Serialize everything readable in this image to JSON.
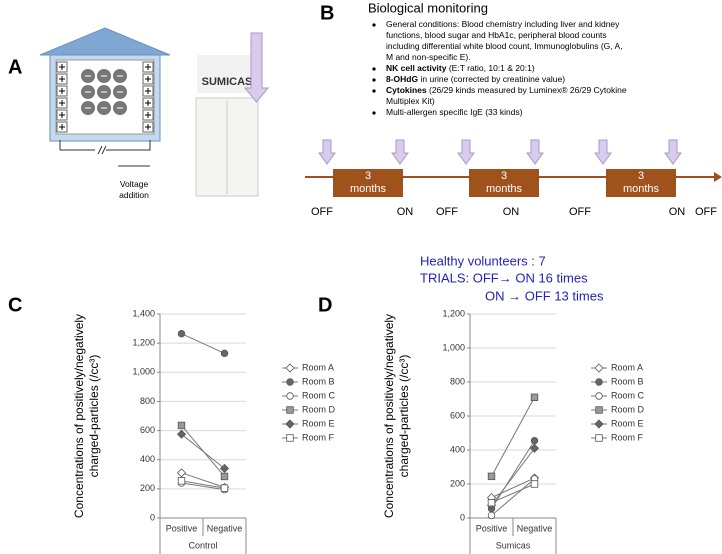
{
  "panel_a": {
    "letter": "A",
    "logo": "SUMICAS",
    "voltage_label": [
      "Voltage",
      "addition"
    ]
  },
  "panel_b": {
    "letter": "B",
    "title": "Biological monitoring",
    "bullets": [
      {
        "lines": [
          "General conditions: Blood chemistry including liver and kidney",
          "functions, blood sugar and HbA1c, peripheral blood counts",
          "including differential white blood count, Immunoglobulins (G, A,",
          "M and non-specific E)."
        ]
      },
      {
        "bold": "NK cell activity",
        "lines": [
          " (E:T ratio, 10:1 & 20:1)"
        ]
      },
      {
        "bold": "8-OHdG",
        "lines": [
          " in urine (corrected by creatinine value)"
        ]
      },
      {
        "bold": "Cytokines",
        "lines": [
          " (26/29 kinds measured by Luminex® 26/29 Cytokine",
          "Multiplex Kit)"
        ]
      },
      {
        "lines": [
          "Multi-allergen specific IgE (33 kinds)"
        ]
      }
    ],
    "period_labels": [
      [
        "3",
        "months"
      ],
      [
        "3",
        "months"
      ],
      [
        "3",
        "months"
      ]
    ],
    "state_labels": [
      "OFF",
      "ON",
      "OFF",
      "ON",
      "OFF",
      "ON",
      "OFF"
    ],
    "summary": [
      "Healthy volunteers : 7",
      "TRIALS:  OFF→ ON    16 times",
      "ON  → OFF  13 times"
    ]
  },
  "chart_data": [
    {
      "type": "line",
      "letter": "C",
      "xlabel": "Control",
      "ylabel": [
        "Concentrations of positively/negatively",
        "charged-particles (/cc³)"
      ],
      "categories": [
        "Positive",
        "Negative"
      ],
      "ylim": [
        0,
        1400
      ],
      "yticks": [
        0,
        200,
        400,
        600,
        800,
        {
          "value": 1000,
          "label": "1,000"
        },
        {
          "value": 1200,
          "label": "1,200"
        },
        {
          "value": 1400,
          "label": "1,400"
        }
      ],
      "grid": true,
      "series": [
        {
          "name": "Room A",
          "color": "#888888",
          "marker": "open-diamond",
          "values": [
            310,
            210
          ]
        },
        {
          "name": "Room B",
          "color": "#666666",
          "marker": "circle",
          "values": [
            1265,
            1130
          ]
        },
        {
          "name": "Room C",
          "color": "#888888",
          "marker": "open-circle",
          "values": [
            240,
            195
          ]
        },
        {
          "name": "Room D",
          "color": "#999999",
          "marker": "square",
          "values": [
            635,
            285
          ]
        },
        {
          "name": "Room E",
          "color": "#666666",
          "marker": "diamond",
          "values": [
            575,
            340
          ]
        },
        {
          "name": "Room F",
          "color": "#888888",
          "marker": "open-square",
          "values": [
            255,
            205
          ]
        }
      ]
    },
    {
      "type": "line",
      "letter": "D",
      "xlabel": "Sumicas",
      "ylabel": [
        "Concentrations of positively/negatively",
        "charged-particles (/cc³)"
      ],
      "categories": [
        "Positive",
        "Negative"
      ],
      "ylim": [
        0,
        1200
      ],
      "yticks": [
        0,
        200,
        400,
        600,
        800,
        {
          "value": 1000,
          "label": "1,000"
        },
        {
          "value": 1200,
          "label": "1,200"
        }
      ],
      "grid": true,
      "series": [
        {
          "name": "Room A",
          "color": "#888888",
          "marker": "open-diamond",
          "values": [
            120,
            235
          ]
        },
        {
          "name": "Room B",
          "color": "#666666",
          "marker": "circle",
          "values": [
            55,
            455
          ]
        },
        {
          "name": "Room C",
          "color": "#888888",
          "marker": "open-circle",
          "values": [
            15,
            230
          ]
        },
        {
          "name": "Room D",
          "color": "#999999",
          "marker": "square",
          "values": [
            245,
            710
          ]
        },
        {
          "name": "Room E",
          "color": "#666666",
          "marker": "diamond",
          "values": [
            75,
            410
          ]
        },
        {
          "name": "Room F",
          "color": "#888888",
          "marker": "open-square",
          "values": [
            90,
            200
          ]
        }
      ]
    }
  ]
}
